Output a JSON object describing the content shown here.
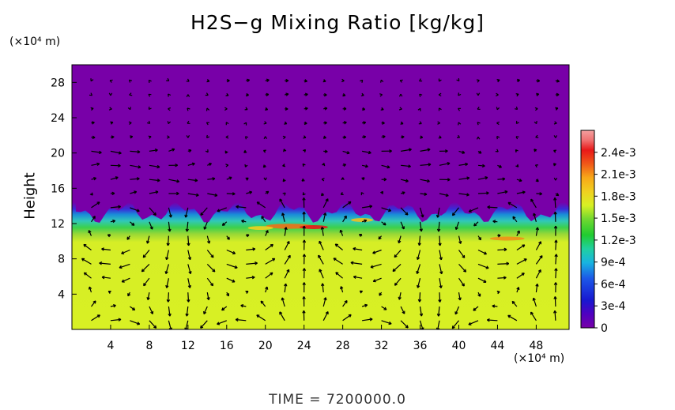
{
  "chart_data": {
    "type": "heatmap",
    "title": "H2S−g Mixing Ratio [kg/kg]",
    "ylabel": "Height",
    "x_unit_label": "(×10⁴ m)",
    "y_unit_label": "(×10⁴ m)",
    "xlim": [
      0,
      51.4
    ],
    "ylim": [
      0,
      30
    ],
    "x_ticks": [
      "4",
      "8",
      "12",
      "16",
      "20",
      "24",
      "28",
      "32",
      "36",
      "40",
      "44",
      "48"
    ],
    "y_ticks": [
      "4",
      "8",
      "12",
      "16",
      "20",
      "24",
      "28"
    ],
    "x_tick_values": [
      4,
      8,
      12,
      16,
      20,
      24,
      28,
      32,
      36,
      40,
      44,
      48
    ],
    "y_tick_values": [
      4,
      8,
      12,
      16,
      20,
      24,
      28
    ],
    "colorbar": {
      "range": [
        0,
        0.0027
      ],
      "tick_labels": [
        "0",
        "3e-4",
        "6e-4",
        "9e-4",
        "1.2e-3",
        "1.5e-3",
        "1.8e-3",
        "2.1e-3",
        "2.4e-3"
      ],
      "tick_values": [
        0,
        0.0003,
        0.0006,
        0.0009,
        0.0012,
        0.0015,
        0.0018,
        0.0021,
        0.0024
      ]
    },
    "field_summary": {
      "upper_layer_value": 0,
      "lower_layer_value": 0.00165,
      "interface_height": 12.5,
      "mixing_band": [
        10.5,
        14
      ],
      "peak_value": 0.0026,
      "peak_location": [
        25,
        11.6
      ]
    },
    "overlay": "velocity vectors (arrows)",
    "grid": false,
    "colors": {
      "upper": "#7800a8",
      "lower": "#d8f024"
    }
  },
  "footer": {
    "time_text": "TIME  =  7200000.0"
  }
}
